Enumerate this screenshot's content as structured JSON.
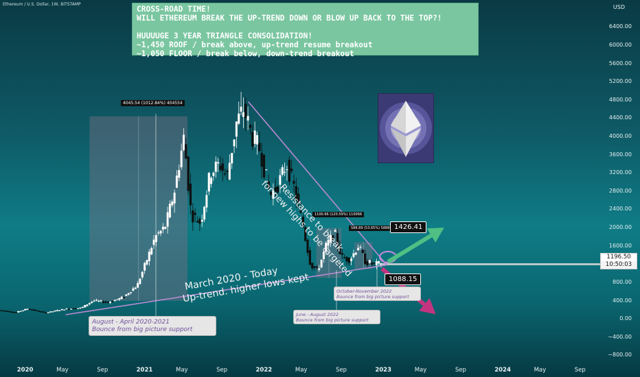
{
  "header": {
    "symbol_line": "Ethereum / U.S. Dollar, 1W, BITSTAMP",
    "currency": "USD"
  },
  "callout": {
    "lines": [
      "CROSS-ROAD TIME!",
      "WILL ETHEREUM BREAK THE UP-TREND DOWN OR BLOW UP BACK TO THE TOP?!",
      "",
      "HUUUUGE 3 YEAR TRIANGLE CONSOLIDATION!",
      "~1,450 ROOF / break above, up-trend resume breakout",
      "~1,050 FLOOR / break below, down-trend breakout"
    ]
  },
  "annotations": {
    "range1": "4045.54 (1012.84%) 404554",
    "range2": "1100.66 (120.59%) 110066",
    "range3": "588.89 (53.65%) 58889",
    "resistance_1": "Resistance to break",
    "resistance_2": "for new highs to be targeted",
    "uptrend_1": "March 2020 - Today",
    "uptrend_2": "Up-trend. higher lows kept",
    "note_aug_1": "August - April 2020-2021",
    "note_aug_2": "Bounce from big picture support",
    "note_jun_1": "June - August 2022",
    "note_jun_2": "Bounce from big picture support",
    "note_oct_1": "October-November 2022",
    "note_oct_2": "Bounce from big picture support",
    "tag_high": "1426.41",
    "tag_low": "1088.15",
    "current_price": "1196.50",
    "countdown": "10:50:03"
  },
  "colors": {
    "up_candle": "#ffffff",
    "down_candle": "#111111",
    "resistance_line": "#b88ad1",
    "support_line": "#b88ad1",
    "green_arrow": "#4fbf84",
    "pink_arrow": "#c2347f",
    "accent_box": "#7ac6a0"
  },
  "chart_data": {
    "type": "candlestick",
    "title": "Ethereum / U.S. Dollar, 1W, BITSTAMP",
    "yaxis_ticks": [
      6400,
      6000,
      5600,
      5200,
      4800,
      4400,
      4000,
      3600,
      3200,
      2800,
      2400,
      2000,
      1600,
      1200,
      800,
      400,
      0,
      -400,
      -800
    ],
    "ytick_labels": [
      "6400.00",
      "6000.00",
      "5600.00",
      "5200.00",
      "4800.00",
      "4400.00",
      "4000.00",
      "3600.00",
      "3200.00",
      "2800.00",
      "2400.00",
      "2000.00",
      "1600.00",
      "1200.00",
      "800.00",
      "400.00",
      "0.00",
      "−400.00",
      "−800.00"
    ],
    "ylim": [
      -900,
      6900
    ],
    "xaxis_ticks": [
      {
        "label": "2020",
        "t": 2020.0,
        "bold": true
      },
      {
        "label": "May",
        "t": 2020.33
      },
      {
        "label": "Sep",
        "t": 2020.67
      },
      {
        "label": "2021",
        "t": 2021.0,
        "bold": true
      },
      {
        "label": "May",
        "t": 2021.33
      },
      {
        "label": "Sep",
        "t": 2021.67
      },
      {
        "label": "2022",
        "t": 2022.0,
        "bold": true
      },
      {
        "label": "May",
        "t": 2022.33
      },
      {
        "label": "Sep",
        "t": 2022.67
      },
      {
        "label": "2023",
        "t": 2023.0,
        "bold": true
      },
      {
        "label": "May",
        "t": 2023.33
      },
      {
        "label": "Sep",
        "t": 2023.67
      },
      {
        "label": "2024",
        "t": 2024.0,
        "bold": true
      },
      {
        "label": "May",
        "t": 2024.33
      },
      {
        "label": "Sep",
        "t": 2024.67
      }
    ],
    "xlim": [
      2019.8,
      2024.85
    ],
    "price_path": [
      [
        2019.8,
        190
      ],
      [
        2019.95,
        140
      ],
      [
        2020.05,
        220
      ],
      [
        2020.2,
        130
      ],
      [
        2020.35,
        210
      ],
      [
        2020.5,
        240
      ],
      [
        2020.6,
        400
      ],
      [
        2020.72,
        360
      ],
      [
        2020.85,
        470
      ],
      [
        2020.97,
        740
      ],
      [
        2021.05,
        1300
      ],
      [
        2021.12,
        1800
      ],
      [
        2021.2,
        2000
      ],
      [
        2021.28,
        2800
      ],
      [
        2021.36,
        4000
      ],
      [
        2021.42,
        2300
      ],
      [
        2021.5,
        2100
      ],
      [
        2021.58,
        3200
      ],
      [
        2021.66,
        3400
      ],
      [
        2021.72,
        3100
      ],
      [
        2021.8,
        4300
      ],
      [
        2021.86,
        4600
      ],
      [
        2021.93,
        4000
      ],
      [
        2022.0,
        3700
      ],
      [
        2022.08,
        2700
      ],
      [
        2022.14,
        2900
      ],
      [
        2022.22,
        3400
      ],
      [
        2022.28,
        2900
      ],
      [
        2022.36,
        2000
      ],
      [
        2022.42,
        1200
      ],
      [
        2022.48,
        1050
      ],
      [
        2022.55,
        1600
      ],
      [
        2022.62,
        1900
      ],
      [
        2022.68,
        1350
      ],
      [
        2022.75,
        1300
      ],
      [
        2022.82,
        1600
      ],
      [
        2022.88,
        1250
      ],
      [
        2022.94,
        1200
      ],
      [
        2023.0,
        1196.5
      ]
    ],
    "resistance_line": [
      [
        2021.88,
        4760
      ],
      [
        2023.04,
        1180
      ]
    ],
    "support_line": [
      [
        2020.35,
        90
      ],
      [
        2023.04,
        1180
      ]
    ],
    "current_price_line": 1196.5,
    "ranges": [
      {
        "from": 2020.55,
        "to": 2021.37,
        "low": 395,
        "high": 4440,
        "label": "4045.54 (1012.84%) 404554"
      },
      {
        "from": 2022.45,
        "to": 2022.66,
        "low": 895,
        "high": 1990,
        "label": "1100.66 (120.59%) 110066"
      },
      {
        "from": 2022.77,
        "to": 2022.92,
        "low": 1090,
        "high": 1680,
        "label": "588.89 (53.65%) 58889"
      }
    ],
    "projection_up": {
      "from": [
        2023.05,
        1250
      ],
      "to": [
        2023.52,
        2000
      ]
    },
    "projection_down": {
      "from": [
        2023.0,
        1100
      ],
      "to": [
        2023.45,
        100
      ]
    }
  }
}
